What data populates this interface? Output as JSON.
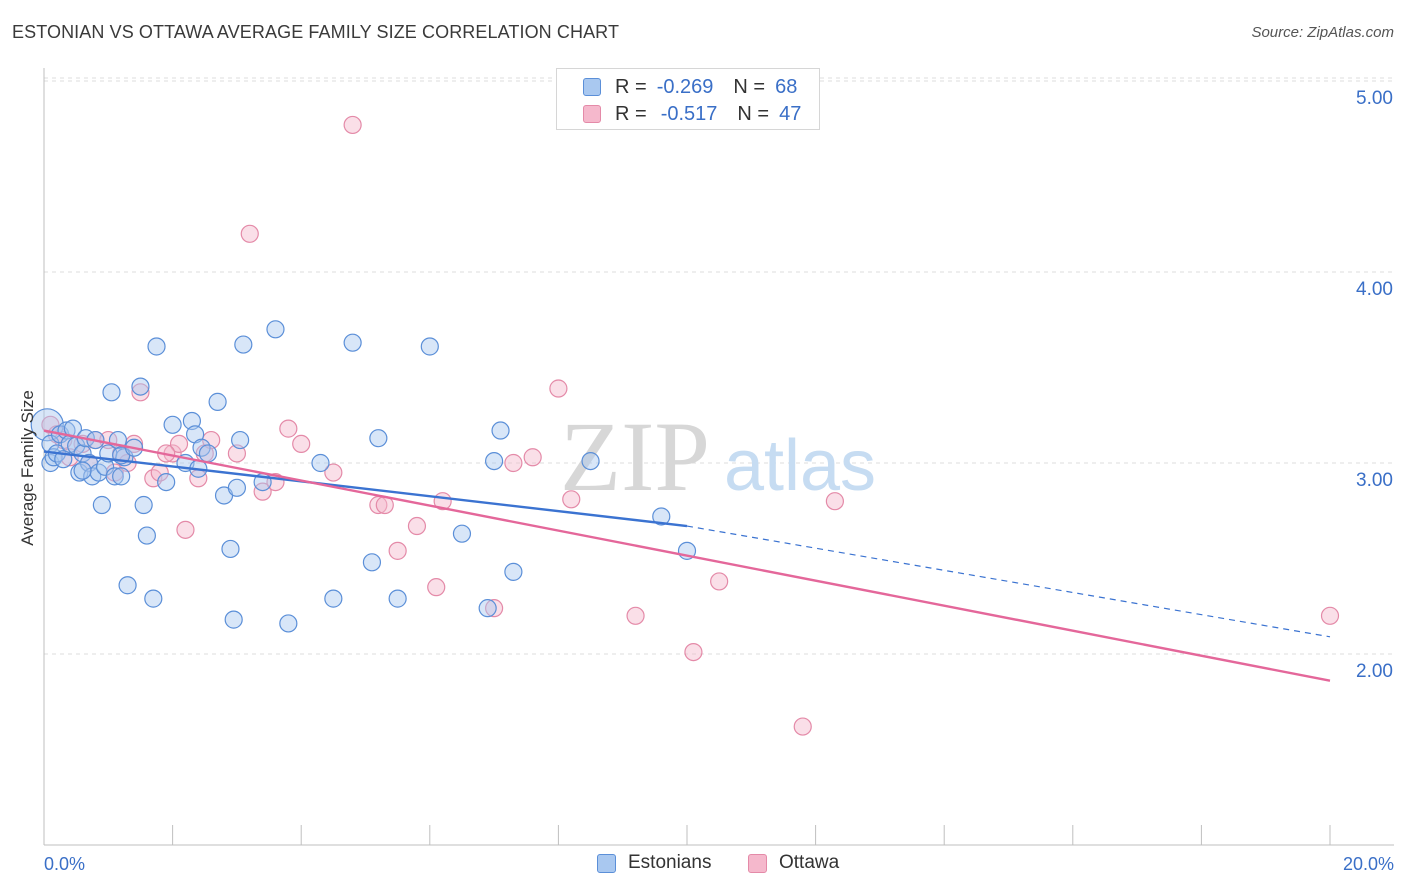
{
  "header": {
    "title": "ESTONIAN VS OTTAWA AVERAGE FAMILY SIZE CORRELATION CHART",
    "source": "Source: ZipAtlas.com"
  },
  "watermark": {
    "zip": "ZIP",
    "atlas": "atlas"
  },
  "legend": {
    "estonians": {
      "r_label": "R =",
      "r_value": "-0.269",
      "n_label": "N =",
      "n_value": "68"
    },
    "ottawa": {
      "r_label": "R =",
      "r_value": "-0.517",
      "n_label": "N =",
      "n_value": "47"
    }
  },
  "bottom_legend": {
    "estonians": "Estonians",
    "ottawa": "Ottawa"
  },
  "colors": {
    "blue_fill": "#a9c8f0",
    "blue_stroke": "#5b8fd8",
    "blue_line": "#3b73d1",
    "pink_fill": "#f5b8cc",
    "pink_stroke": "#e48aa8",
    "pink_line": "#e4679a",
    "axis_text": "#3a6fc7",
    "grid": "#dcdcdc"
  },
  "chart_data": {
    "type": "scatter",
    "title": "ESTONIAN VS OTTAWA AVERAGE FAMILY SIZE CORRELATION CHART",
    "xlabel": "",
    "ylabel": "Average Family Size",
    "xlim": [
      0,
      20
    ],
    "ylim": [
      1.0,
      5.1
    ],
    "x_tick_labels": [
      "0.0%",
      "20.0%"
    ],
    "y_ticks": [
      2.0,
      3.0,
      4.0,
      5.0
    ],
    "y_tick_labels": [
      "2.00",
      "3.00",
      "4.00",
      "5.00"
    ],
    "grid": true,
    "series": [
      {
        "name": "Estonians",
        "points": [
          [
            0.05,
            3.2
          ],
          [
            0.1,
            3.1
          ],
          [
            0.1,
            3.0
          ],
          [
            0.15,
            3.03
          ],
          [
            0.2,
            3.05
          ],
          [
            0.25,
            3.15
          ],
          [
            0.3,
            3.02
          ],
          [
            0.35,
            3.17
          ],
          [
            0.4,
            3.1
          ],
          [
            0.45,
            3.18
          ],
          [
            0.5,
            3.09
          ],
          [
            0.55,
            2.95
          ],
          [
            0.6,
            3.05
          ],
          [
            0.65,
            3.13
          ],
          [
            0.7,
            3.0
          ],
          [
            0.75,
            2.93
          ],
          [
            0.8,
            3.12
          ],
          [
            0.85,
            2.95
          ],
          [
            0.9,
            2.78
          ],
          [
            0.95,
            2.98
          ],
          [
            1.0,
            3.05
          ],
          [
            1.05,
            3.37
          ],
          [
            1.1,
            2.93
          ],
          [
            1.15,
            3.12
          ],
          [
            1.2,
            2.93
          ],
          [
            1.25,
            3.03
          ],
          [
            1.3,
            2.36
          ],
          [
            1.2,
            3.04
          ],
          [
            1.4,
            3.08
          ],
          [
            1.5,
            3.4
          ],
          [
            1.55,
            2.78
          ],
          [
            1.6,
            2.62
          ],
          [
            1.7,
            2.29
          ],
          [
            1.75,
            3.61
          ],
          [
            1.9,
            2.9
          ],
          [
            2.0,
            3.2
          ],
          [
            2.2,
            3.0
          ],
          [
            2.3,
            3.22
          ],
          [
            2.35,
            3.15
          ],
          [
            2.4,
            2.97
          ],
          [
            2.45,
            3.08
          ],
          [
            2.55,
            3.05
          ],
          [
            2.7,
            3.32
          ],
          [
            2.8,
            2.83
          ],
          [
            2.9,
            2.55
          ],
          [
            2.95,
            2.18
          ],
          [
            3.0,
            2.87
          ],
          [
            3.05,
            3.12
          ],
          [
            3.1,
            3.62
          ],
          [
            3.4,
            2.9
          ],
          [
            3.6,
            3.7
          ],
          [
            3.8,
            2.16
          ],
          [
            4.3,
            3.0
          ],
          [
            4.5,
            2.29
          ],
          [
            4.8,
            3.63
          ],
          [
            5.1,
            2.48
          ],
          [
            5.2,
            3.13
          ],
          [
            5.5,
            2.29
          ],
          [
            6.0,
            3.61
          ],
          [
            6.5,
            2.63
          ],
          [
            6.9,
            2.24
          ],
          [
            7.0,
            3.01
          ],
          [
            7.1,
            3.17
          ],
          [
            7.3,
            2.43
          ],
          [
            8.5,
            3.01
          ],
          [
            9.6,
            2.72
          ],
          [
            10.0,
            2.54
          ],
          [
            0.6,
            2.96
          ]
        ]
      },
      {
        "name": "Ottawa",
        "points": [
          [
            0.1,
            3.2
          ],
          [
            0.2,
            3.15
          ],
          [
            0.3,
            3.12
          ],
          [
            0.4,
            3.03
          ],
          [
            0.6,
            3.1
          ],
          [
            0.7,
            3.0
          ],
          [
            0.8,
            3.12
          ],
          [
            1.0,
            3.12
          ],
          [
            1.1,
            2.95
          ],
          [
            1.2,
            3.05
          ],
          [
            1.3,
            3.0
          ],
          [
            1.4,
            3.1
          ],
          [
            1.5,
            3.37
          ],
          [
            1.7,
            2.92
          ],
          [
            1.8,
            2.95
          ],
          [
            2.0,
            3.05
          ],
          [
            2.1,
            3.1
          ],
          [
            2.2,
            2.65
          ],
          [
            2.4,
            2.92
          ],
          [
            2.5,
            3.05
          ],
          [
            2.6,
            3.12
          ],
          [
            3.0,
            3.05
          ],
          [
            3.2,
            4.2
          ],
          [
            3.4,
            2.85
          ],
          [
            3.6,
            2.9
          ],
          [
            3.8,
            3.18
          ],
          [
            4.0,
            3.1
          ],
          [
            4.5,
            2.95
          ],
          [
            4.8,
            4.77
          ],
          [
            5.2,
            2.78
          ],
          [
            5.3,
            2.78
          ],
          [
            5.5,
            2.54
          ],
          [
            5.8,
            2.67
          ],
          [
            6.1,
            2.35
          ],
          [
            6.2,
            2.8
          ],
          [
            7.0,
            2.24
          ],
          [
            7.3,
            3.0
          ],
          [
            7.6,
            3.03
          ],
          [
            8.0,
            3.39
          ],
          [
            8.2,
            2.81
          ],
          [
            9.2,
            2.2
          ],
          [
            10.1,
            2.01
          ],
          [
            10.5,
            2.38
          ],
          [
            11.8,
            1.62
          ],
          [
            12.3,
            2.8
          ],
          [
            20.0,
            2.2
          ],
          [
            1.9,
            3.05
          ]
        ]
      }
    ],
    "trend_lines": [
      {
        "series": "Estonians",
        "x_start": 0,
        "y_start": 3.06,
        "x_end": 10.0,
        "y_end": 2.67,
        "style": "solid",
        "extension": {
          "x_end": 20.0,
          "y_end": 2.09,
          "style": "dashed"
        }
      },
      {
        "series": "Ottawa",
        "x_start": 0,
        "y_start": 3.17,
        "x_end": 20.0,
        "y_end": 1.86,
        "style": "solid"
      }
    ]
  }
}
